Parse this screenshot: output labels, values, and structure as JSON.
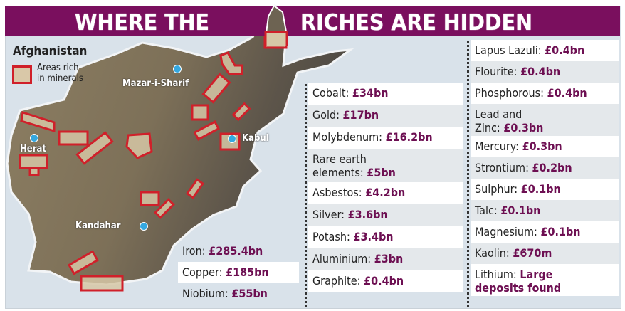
{
  "header": {
    "title_left": "WHERE THE",
    "title_right": "RICHES ARE HIDDEN",
    "bg_color": "#7a0f5e"
  },
  "legend": {
    "title": "Afghanistan",
    "item_line1": "Areas rich",
    "item_line2": "in minerals",
    "box_color": "#d0202a"
  },
  "cities": [
    {
      "name": "Mazar-i-Sharif"
    },
    {
      "name": "Herat"
    },
    {
      "name": "Kabul"
    },
    {
      "name": "Kandahar"
    }
  ],
  "value_color": "#6d0f52",
  "minerals_left": [
    {
      "name": "Iron:",
      "value": "£285.4bn"
    },
    {
      "name": "Copper:",
      "value": "£185bn"
    },
    {
      "name": "Niobium:",
      "value": "£55bn"
    }
  ],
  "minerals_middle": [
    {
      "name": "Cobalt:",
      "value": "£34bn"
    },
    {
      "name": "Gold:",
      "value": "£17bn"
    },
    {
      "name": "Molybdenum:",
      "value": "£16.2bn"
    },
    {
      "name": "Rare earth",
      "name2": "elements:",
      "value": "£5bn"
    },
    {
      "name": "Asbestos:",
      "value": "£4.2bn"
    },
    {
      "name": "Silver:",
      "value": "£3.6bn"
    },
    {
      "name": "Potash:",
      "value": "£3.4bn"
    },
    {
      "name": "Aluminium:",
      "value": "£3bn"
    },
    {
      "name": "Graphite:",
      "value": "£0.4bn"
    }
  ],
  "minerals_right": [
    {
      "name": "Lapus Lazuli:",
      "value": "£0.4bn"
    },
    {
      "name": "Flourite:",
      "value": "£0.4bn"
    },
    {
      "name": "Phosphorous:",
      "value": "£0.4bn"
    },
    {
      "name": "Lead and",
      "name2": "Zinc:",
      "value": "£0.3bn"
    },
    {
      "name": "Mercury:",
      "value": "£0.3bn"
    },
    {
      "name": "Strontium:",
      "value": "£0.2bn"
    },
    {
      "name": "Sulphur:",
      "value": "£0.1bn"
    },
    {
      "name": "Talc:",
      "value": "£0.1bn"
    },
    {
      "name": "Magnesium:",
      "value": "£0.1bn"
    },
    {
      "name": "Kaolin:",
      "value": "£670m"
    },
    {
      "name": "Lithium:",
      "value": "Large",
      "value2": "deposits found"
    }
  ]
}
